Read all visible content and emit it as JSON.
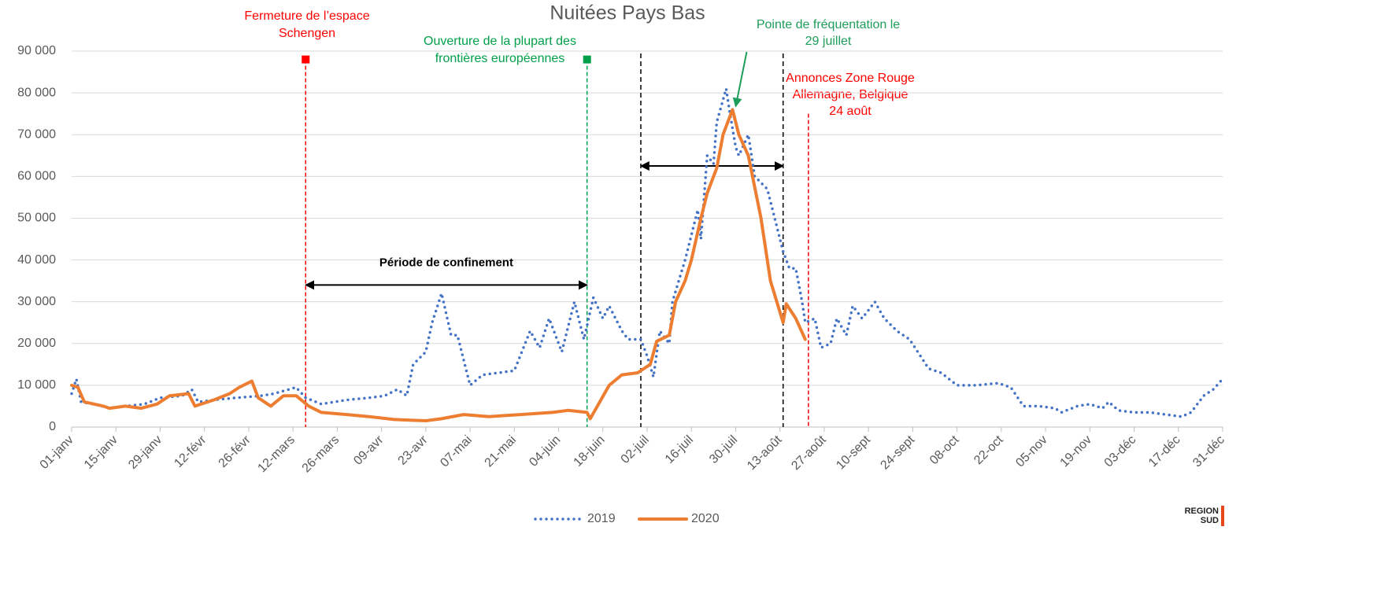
{
  "chart_data": {
    "type": "line",
    "title": "Nuitées Pays Bas",
    "xlim": [
      0,
      364
    ],
    "xticks": [
      {
        "value": 0,
        "label": "01-janv"
      },
      {
        "value": 14,
        "label": "15-janv"
      },
      {
        "value": 28,
        "label": "29-janv"
      },
      {
        "value": 42,
        "label": "12-févr"
      },
      {
        "value": 56,
        "label": "26-févr"
      },
      {
        "value": 70,
        "label": "12-mars"
      },
      {
        "value": 84,
        "label": "26-mars"
      },
      {
        "value": 98,
        "label": "09-avr"
      },
      {
        "value": 112,
        "label": "23-avr"
      },
      {
        "value": 126,
        "label": "07-mai"
      },
      {
        "value": 140,
        "label": "21-mai"
      },
      {
        "value": 154,
        "label": "04-juin"
      },
      {
        "value": 168,
        "label": "18-juin"
      },
      {
        "value": 182,
        "label": "02-juil"
      },
      {
        "value": 196,
        "label": "16-juil"
      },
      {
        "value": 210,
        "label": "30-juil"
      },
      {
        "value": 224,
        "label": "13-août"
      },
      {
        "value": 238,
        "label": "27-août"
      },
      {
        "value": 252,
        "label": "10-sept"
      },
      {
        "value": 266,
        "label": "24-sept"
      },
      {
        "value": 280,
        "label": "08-oct"
      },
      {
        "value": 294,
        "label": "22-oct"
      },
      {
        "value": 308,
        "label": "05-nov"
      },
      {
        "value": 322,
        "label": "19-nov"
      },
      {
        "value": 336,
        "label": "03-déc"
      },
      {
        "value": 350,
        "label": "17-déc"
      },
      {
        "value": 364,
        "label": "31-déc"
      }
    ],
    "ylim": [
      0,
      90000
    ],
    "yticks": [
      {
        "value": 0,
        "label": "0"
      },
      {
        "value": 10000,
        "label": "10 000"
      },
      {
        "value": 20000,
        "label": "20 000"
      },
      {
        "value": 30000,
        "label": "30 000"
      },
      {
        "value": 40000,
        "label": "40 000"
      },
      {
        "value": 50000,
        "label": "50 000"
      },
      {
        "value": 60000,
        "label": "60 000"
      },
      {
        "value": 70000,
        "label": "70 000"
      },
      {
        "value": 80000,
        "label": "80 000"
      },
      {
        "value": 90000,
        "label": "90 000"
      }
    ],
    "grid": true,
    "legend": "bottom",
    "series": [
      {
        "name": "2019",
        "color": "#4472c4",
        "style": "dotted",
        "x": [
          0,
          1.5,
          3,
          7,
          12,
          17,
          23,
          28,
          35,
          38,
          40,
          45,
          52,
          60,
          64,
          71,
          74,
          79,
          87,
          94,
          99,
          103,
          106,
          108,
          112,
          114,
          117,
          120,
          122,
          126,
          130,
          135,
          140,
          145,
          148,
          151,
          155,
          159,
          162,
          165,
          168,
          170,
          174,
          176,
          180,
          182,
          184,
          186,
          189,
          190,
          194,
          198,
          199,
          201,
          203,
          204,
          207,
          208,
          210,
          211,
          214,
          216,
          220,
          222,
          225,
          227,
          229,
          231,
          232,
          235,
          237,
          240,
          242,
          245,
          247,
          250,
          254,
          257,
          261,
          265,
          271,
          275,
          280,
          286,
          293,
          297,
          301,
          306,
          311,
          313,
          318,
          322,
          326,
          328,
          331,
          336,
          341,
          346,
          351,
          354,
          358,
          361,
          364
        ],
        "values": [
          8000,
          11500,
          6000,
          5500,
          4500,
          5000,
          5500,
          7000,
          7500,
          9000,
          6000,
          6500,
          7000,
          7500,
          8000,
          9500,
          7000,
          5500,
          6500,
          7000,
          7500,
          9000,
          7500,
          15000,
          18000,
          25000,
          32000,
          22000,
          22000,
          10000,
          12500,
          13000,
          13500,
          23000,
          19000,
          26000,
          18000,
          30000,
          21000,
          31000,
          26000,
          29000,
          23000,
          21000,
          21000,
          17000,
          12000,
          23000,
          20000,
          30000,
          40000,
          52000,
          45000,
          65000,
          63000,
          73000,
          81000,
          76000,
          67000,
          65000,
          70000,
          60000,
          57000,
          51000,
          42000,
          38000,
          38000,
          30000,
          25000,
          26000,
          19000,
          20000,
          26000,
          22000,
          29000,
          26000,
          30000,
          26000,
          23000,
          21000,
          14000,
          13000,
          10000,
          10000,
          10500,
          9500,
          5000,
          5000,
          4500,
          3500,
          5000,
          5500,
          4500,
          6000,
          4000,
          3500,
          3500,
          3000,
          2500,
          3500,
          7500,
          9000,
          11500
        ]
      },
      {
        "name": "2020",
        "color": "#ed7d31",
        "style": "solid",
        "x": [
          0,
          2,
          4,
          10,
          12,
          17,
          22,
          27,
          31,
          37,
          39,
          45,
          50,
          53,
          57,
          59,
          63,
          67,
          71,
          75,
          79,
          87,
          94,
          102,
          112,
          117,
          124,
          132,
          142,
          152,
          157,
          163,
          164,
          167,
          170,
          174,
          179,
          183,
          185,
          189,
          191,
          194,
          196,
          199,
          201,
          204,
          206,
          209,
          211,
          214,
          218,
          221,
          223,
          225,
          226,
          229,
          232
        ],
        "values": [
          10000,
          9500,
          6000,
          5000,
          4500,
          5000,
          4500,
          5500,
          7500,
          8000,
          5000,
          6500,
          8000,
          9500,
          11000,
          7000,
          5000,
          7500,
          7500,
          5000,
          3500,
          3000,
          2500,
          1800,
          1500,
          2000,
          3000,
          2500,
          3000,
          3500,
          4000,
          3500,
          2000,
          6000,
          10000,
          12500,
          13000,
          15000,
          20500,
          22000,
          30000,
          35000,
          40000,
          50000,
          56000,
          62000,
          70000,
          76000,
          70000,
          65000,
          50000,
          35000,
          30000,
          25000,
          29500,
          26000,
          21000
        ]
      }
    ],
    "annotations": [
      {
        "text": [
          "Fermeture de l’espace",
          "Schengen"
        ],
        "x": 74,
        "color": "#ff0000",
        "marker": 88000
      },
      {
        "text": [
          "Ouverture de la plupart des",
          "frontières européennes"
        ],
        "x": 163,
        "color": "#00a04a",
        "marker": 88000
      },
      {
        "text": [
          "Pointe de fréquentation le",
          "29 juillet"
        ],
        "color": "#1e9e5a",
        "arrow_to": [
          210,
          76000
        ]
      },
      {
        "text": [
          "Annonces Zone Rouge",
          "Allemagne, Belgique",
          "24 août"
        ],
        "x": 233,
        "color": "#ff0000",
        "top": 75000
      }
    ],
    "reference_lines": [
      180,
      225
    ],
    "ranges": [
      {
        "label": "Période de confinement",
        "from": 74,
        "to": 163,
        "y": 34000
      },
      {
        "from": 180,
        "to": 225,
        "y": 62500
      }
    ],
    "logo": [
      "REGION",
      "SUD"
    ]
  }
}
